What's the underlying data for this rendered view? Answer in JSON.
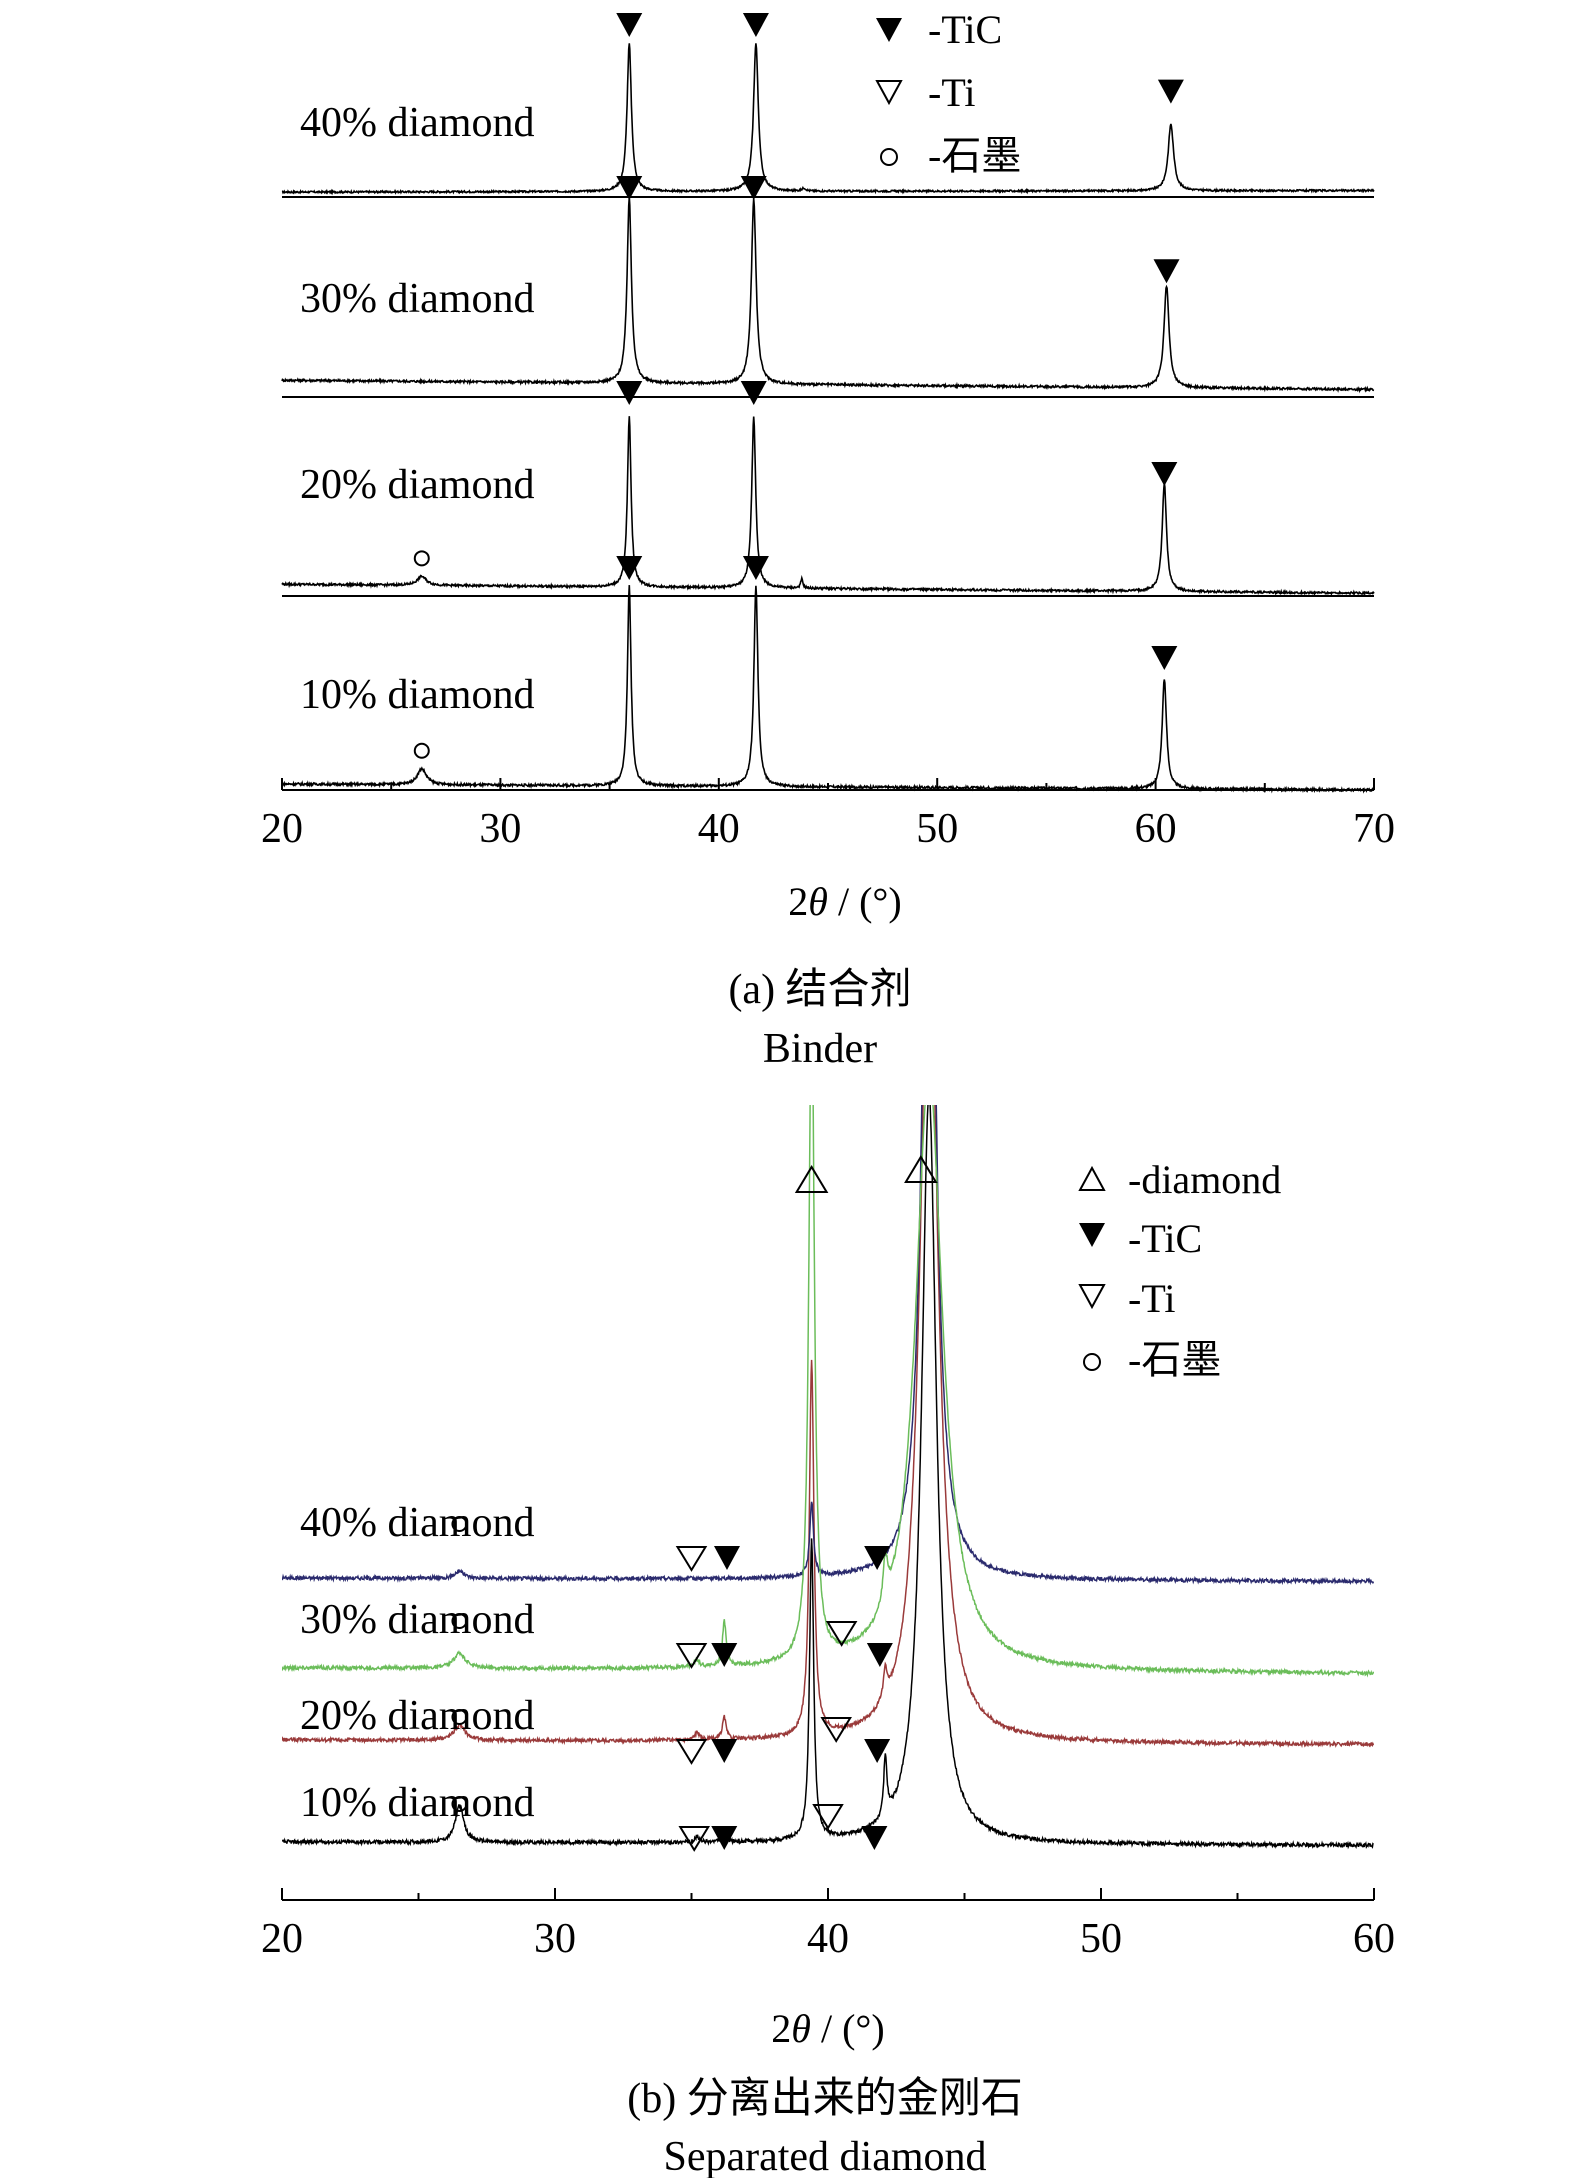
{
  "panel_a": {
    "caption_cn": "(a) 结合剂",
    "caption_en": "Binder",
    "legend": [
      {
        "marker": "filled-down-triangle-icon",
        "label": "-TiC"
      },
      {
        "marker": "open-down-triangle-icon",
        "label": "-Ti"
      },
      {
        "marker": "circle-icon",
        "label": "-石墨"
      }
    ],
    "xlabel_italic": "θ",
    "xlabel_prefix": "2",
    "xlabel_suffix": " / (°)",
    "ticks": [
      "20",
      "30",
      "40",
      "50",
      "60",
      "70"
    ]
  },
  "panel_b": {
    "caption_cn": "(b) 分离出来的金刚石",
    "caption_en": "Separated diamond",
    "legend": [
      {
        "marker": "open-up-triangle-icon",
        "label": "-diamond"
      },
      {
        "marker": "filled-down-triangle-icon",
        "label": "-TiC"
      },
      {
        "marker": "open-down-triangle-icon",
        "label": "-Ti"
      },
      {
        "marker": "circle-icon",
        "label": "-石墨"
      }
    ],
    "xlabel_italic": "θ",
    "xlabel_prefix": "2",
    "xlabel_suffix": " / (°)",
    "ticks": [
      "20",
      "30",
      "40",
      "50",
      "60"
    ]
  },
  "chart_data": [
    {
      "type": "line",
      "title": "(a) 结合剂 Binder",
      "xlabel": "2θ / (°)",
      "ylabel": "",
      "xlim": [
        20,
        70
      ],
      "grid": false,
      "legend_position": "top-center",
      "series": [
        {
          "name": "40% diamond",
          "color": "#000000",
          "baseline": 0.02,
          "slope": 0.01,
          "peaks": [
            [
              35.9,
              1.0,
              0.12
            ],
            [
              41.7,
              1.0,
              0.13
            ],
            [
              43.9,
              0.02,
              0.1
            ],
            [
              60.7,
              0.45,
              0.15
            ]
          ],
          "markers": [
            {
              "type": "TiC",
              "x": 35.9
            },
            {
              "type": "TiC",
              "x": 41.7
            },
            {
              "type": "TiC",
              "x": 60.7
            }
          ]
        },
        {
          "name": "30% diamond",
          "color": "#000000",
          "baseline": 0.08,
          "slope": -0.05,
          "peaks": [
            [
              35.9,
              1.0,
              0.12
            ],
            [
              41.6,
              1.0,
              0.13
            ],
            [
              60.5,
              0.55,
              0.14
            ]
          ],
          "markers": [
            {
              "type": "TiC",
              "x": 35.9
            },
            {
              "type": "TiC",
              "x": 41.6
            },
            {
              "type": "TiC",
              "x": 60.5
            }
          ]
        },
        {
          "name": "20% diamond",
          "color": "#000000",
          "baseline": 0.06,
          "slope": -0.05,
          "peaks": [
            [
              26.4,
              0.05,
              0.25
            ],
            [
              35.9,
              0.95,
              0.1
            ],
            [
              41.6,
              0.95,
              0.11
            ],
            [
              43.8,
              0.05,
              0.06
            ],
            [
              60.4,
              0.6,
              0.12
            ]
          ],
          "markers": [
            {
              "type": "graphite",
              "x": 26.4
            },
            {
              "type": "TiC",
              "x": 35.9
            },
            {
              "type": "TiC",
              "x": 41.6
            },
            {
              "type": "TiC",
              "x": 60.4
            }
          ]
        },
        {
          "name": "10% diamond",
          "color": "#000000",
          "baseline": 0.03,
          "slope": -0.03,
          "peaks": [
            [
              26.4,
              0.08,
              0.25
            ],
            [
              35.9,
              1.0,
              0.1
            ],
            [
              41.7,
              1.0,
              0.11
            ],
            [
              60.4,
              0.55,
              0.12
            ]
          ],
          "markers": [
            {
              "type": "graphite",
              "x": 26.4
            },
            {
              "type": "TiC",
              "x": 35.9
            },
            {
              "type": "TiC",
              "x": 41.7
            },
            {
              "type": "TiC",
              "x": 60.4
            }
          ]
        }
      ]
    },
    {
      "type": "line",
      "title": "(b) 分离出来的金刚石 Separated diamond",
      "xlabel": "2θ / (°)",
      "ylabel": "",
      "xlim": [
        20,
        60
      ],
      "grid": false,
      "legend_position": "top-right",
      "series": [
        {
          "name": "40% diamond",
          "color": "#2b2b6e",
          "baseline": 0.0,
          "slope": -0.03,
          "peaks": [
            [
              26.5,
              0.05,
              0.2
            ],
            [
              39.4,
              0.5,
              0.08
            ],
            [
              43.7,
              6.0,
              0.28
            ]
          ],
          "markers": [
            {
              "type": "graphite",
              "x": 26.5
            },
            {
              "type": "Ti",
              "x": 35.0
            },
            {
              "type": "TiC",
              "x": 36.3
            },
            {
              "type": "TiC",
              "x": 41.8
            }
          ]
        },
        {
          "name": "30% diamond",
          "color": "#6bbd5a",
          "baseline": 0.0,
          "slope": -0.05,
          "peaks": [
            [
              26.5,
              0.1,
              0.25
            ],
            [
              35.2,
              0.05,
              0.1
            ],
            [
              36.2,
              0.3,
              0.08
            ],
            [
              39.4,
              4.5,
              0.12
            ],
            [
              42.1,
              0.3,
              0.1
            ],
            [
              43.7,
              4.0,
              0.6
            ]
          ],
          "markers": [
            {
              "type": "graphite",
              "x": 26.5
            },
            {
              "type": "Ti",
              "x": 35.0
            },
            {
              "type": "TiC",
              "x": 36.2
            },
            {
              "type": "Ti",
              "x": 40.5
            },
            {
              "type": "TiC",
              "x": 41.9
            },
            {
              "type": "diamond",
              "x": 39.4
            },
            {
              "type": "diamond",
              "x": 43.4
            }
          ]
        },
        {
          "name": "20% diamond",
          "color": "#9a3a3a",
          "baseline": 0.0,
          "slope": -0.04,
          "peaks": [
            [
              26.5,
              0.1,
              0.25
            ],
            [
              35.2,
              0.05,
              0.1
            ],
            [
              36.2,
              0.15,
              0.08
            ],
            [
              39.4,
              2.5,
              0.1
            ],
            [
              42.1,
              0.2,
              0.08
            ],
            [
              43.7,
              5.5,
              0.4
            ]
          ],
          "markers": [
            {
              "type": "graphite",
              "x": 26.5
            },
            {
              "type": "Ti",
              "x": 35.0
            },
            {
              "type": "TiC",
              "x": 36.2
            },
            {
              "type": "Ti",
              "x": 40.3
            },
            {
              "type": "TiC",
              "x": 41.8
            }
          ]
        },
        {
          "name": "10% diamond",
          "color": "#000000",
          "baseline": 0.0,
          "slope": -0.03,
          "peaks": [
            [
              26.5,
              0.25,
              0.18
            ],
            [
              35.2,
              0.04,
              0.08
            ],
            [
              36.2,
              0.07,
              0.08
            ],
            [
              39.4,
              2.0,
              0.09
            ],
            [
              42.1,
              0.4,
              0.07
            ],
            [
              43.7,
              5.0,
              0.33
            ]
          ],
          "markers": [
            {
              "type": "graphite",
              "x": 26.5
            },
            {
              "type": "Ti",
              "x": 35.1
            },
            {
              "type": "TiC",
              "x": 36.2
            },
            {
              "type": "Ti",
              "x": 40.0
            },
            {
              "type": "TiC",
              "x": 41.7
            }
          ]
        }
      ]
    }
  ]
}
